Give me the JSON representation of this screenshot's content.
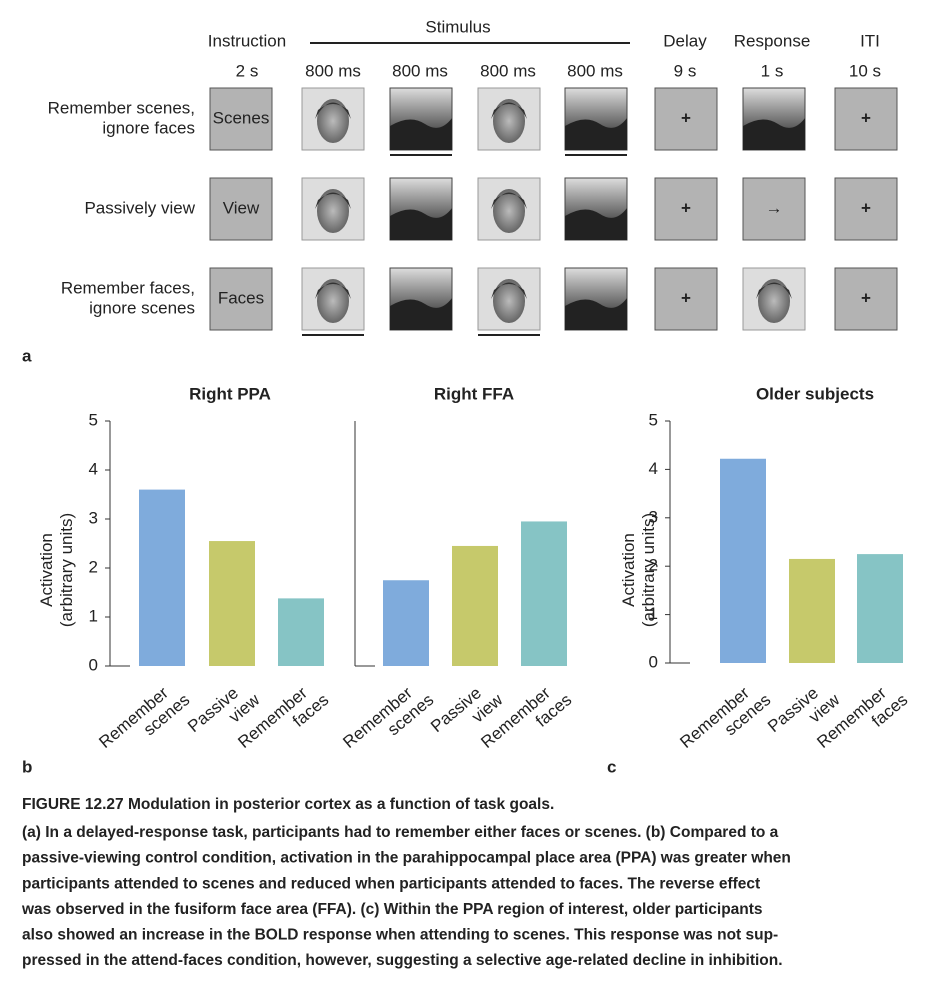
{
  "diagram": {
    "header": {
      "instruction": "Instruction",
      "stimulus": "Stimulus",
      "delay": "Delay",
      "response": "Response",
      "iti": "ITI"
    },
    "durations": [
      "2 s",
      "800 ms",
      "800 ms",
      "800 ms",
      "800 ms",
      "9 s",
      "1 s",
      "10 s"
    ],
    "rows": [
      {
        "label": [
          "Remember scenes,",
          "ignore faces"
        ],
        "instruction": "Scenes",
        "delay": "+",
        "iti": "+"
      },
      {
        "label": [
          "Passively view"
        ],
        "instruction": "View",
        "delay": "+",
        "response": "→",
        "iti": "+"
      },
      {
        "label": [
          "Remember faces,",
          "ignore scenes"
        ],
        "instruction": "Faces",
        "delay": "+",
        "iti": "+"
      }
    ],
    "panel_label": "a"
  },
  "chart_data": [
    {
      "type": "bar",
      "title": "Right PPA",
      "ylabel": [
        "Activation",
        "(arbitrary units)"
      ],
      "categories": [
        "Remember scenes",
        "Passive view",
        "Remember faces"
      ],
      "values": [
        3.6,
        2.55,
        1.38
      ],
      "colors": [
        "#7fabdc",
        "#c6c96b",
        "#86c4c5"
      ],
      "ylim": [
        0,
        5
      ],
      "yticks": [
        0,
        1,
        2,
        3,
        4,
        5
      ]
    },
    {
      "type": "bar",
      "title": "Right FFA",
      "categories": [
        "Remember scenes",
        "Passive view",
        "Remember faces"
      ],
      "values": [
        1.75,
        2.45,
        2.95
      ],
      "colors": [
        "#7fabdc",
        "#c6c96b",
        "#86c4c5"
      ],
      "ylim": [
        0,
        5
      ]
    },
    {
      "type": "bar",
      "title": "Older subjects",
      "ylabel": [
        "Activation",
        "(arbitrary units)"
      ],
      "categories": [
        "Remember scenes",
        "Passive view",
        "Remember faces"
      ],
      "values": [
        4.22,
        2.15,
        2.25
      ],
      "colors": [
        "#7fabdc",
        "#c6c96b",
        "#86c4c5"
      ],
      "ylim": [
        0,
        5
      ],
      "yticks": [
        0,
        1,
        2,
        3,
        4,
        5
      ]
    }
  ],
  "panel_labels": {
    "b": "b",
    "c": "c"
  },
  "caption": {
    "title": "FIGURE 12.27 Modulation in posterior cortex as a function of task goals.",
    "lines": [
      "(a) In a delayed-response task, participants had to remember either faces or scenes. (b) Compared to a",
      "passive-viewing control condition, activation in the parahippocampal place area (PPA) was greater when",
      "participants attended to scenes and reduced when participants attended to faces. The reverse effect",
      "was observed in the fusiform face area (FFA). (c) Within the PPA region of interest, older participants",
      "also showed an increase in the BOLD response when attending to scenes. This response was not sup-",
      "pressed in the attend-faces condition, however, suggesting a selective age-related decline in inhibition."
    ]
  }
}
